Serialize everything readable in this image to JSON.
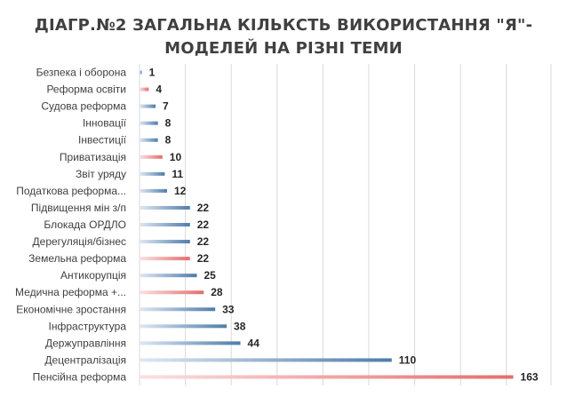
{
  "chart_data": {
    "type": "bar",
    "orientation": "horizontal",
    "title_line1": "ДІАГР.№2 ЗАГАЛЬНА КІЛЬКСТЬ ВИКОРИСТАННЯ \"Я\"-",
    "title_line2": "МОДЕЛЕЙ НА РІЗНІ ТЕМИ",
    "categories": [
      "Безпека і оборона",
      "Реформа освіти",
      "Судова реформа",
      "Інновації",
      "Інвестиції",
      "Приватизація",
      "Звіт уряду",
      "Податкова реформа...",
      "Підвищення мін з/п",
      "Блокада ОРДЛО",
      "Дерегуляція/бізнес",
      "Земельна реформа",
      "Антикорупція",
      "Медична реформа +...",
      "Економічне зростання",
      "Інфраструктура",
      "Держуправління",
      "Децентралізація",
      "Пенсійна реформа"
    ],
    "values": [
      1,
      4,
      7,
      8,
      8,
      10,
      11,
      12,
      22,
      22,
      22,
      22,
      25,
      28,
      33,
      38,
      44,
      110,
      163
    ],
    "bar_colors": [
      "blue",
      "red",
      "blue",
      "blue",
      "blue",
      "red",
      "blue",
      "blue",
      "blue",
      "blue",
      "blue",
      "red",
      "blue",
      "red",
      "blue",
      "blue",
      "blue",
      "blue",
      "red"
    ],
    "palette": {
      "blue": "#4f7cac",
      "red": "#e56d6d",
      "grid": "#d9d9d9"
    },
    "xlim": [
      0,
      180
    ],
    "grid": true,
    "legend": "none"
  }
}
